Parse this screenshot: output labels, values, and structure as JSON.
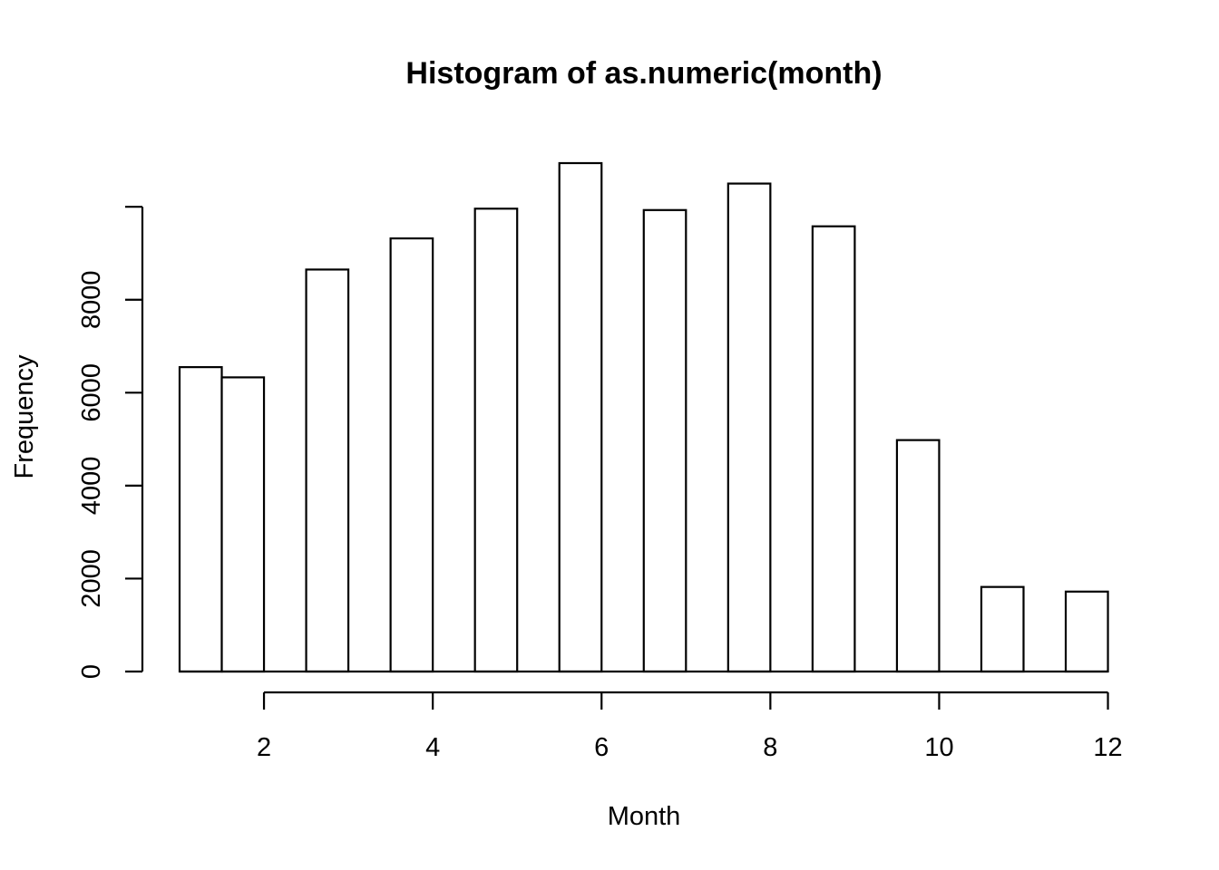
{
  "chart_data": {
    "type": "bar",
    "title": "Histogram of as.numeric(month)",
    "xlabel": "Month",
    "ylabel": "Frequency",
    "bins": [
      {
        "start": 1.0,
        "end": 1.5,
        "count": 6550
      },
      {
        "start": 1.5,
        "end": 2.0,
        "count": 6330
      },
      {
        "start": 2.0,
        "end": 2.5,
        "count": 0
      },
      {
        "start": 2.5,
        "end": 3.0,
        "count": 8650
      },
      {
        "start": 3.0,
        "end": 3.5,
        "count": 0
      },
      {
        "start": 3.5,
        "end": 4.0,
        "count": 9320
      },
      {
        "start": 4.0,
        "end": 4.5,
        "count": 0
      },
      {
        "start": 4.5,
        "end": 5.0,
        "count": 9960
      },
      {
        "start": 5.0,
        "end": 5.5,
        "count": 0
      },
      {
        "start": 5.5,
        "end": 6.0,
        "count": 10940
      },
      {
        "start": 6.0,
        "end": 6.5,
        "count": 0
      },
      {
        "start": 6.5,
        "end": 7.0,
        "count": 9930
      },
      {
        "start": 7.0,
        "end": 7.5,
        "count": 0
      },
      {
        "start": 7.5,
        "end": 8.0,
        "count": 10500
      },
      {
        "start": 8.0,
        "end": 8.5,
        "count": 0
      },
      {
        "start": 8.5,
        "end": 9.0,
        "count": 9580
      },
      {
        "start": 9.0,
        "end": 9.5,
        "count": 0
      },
      {
        "start": 9.5,
        "end": 10.0,
        "count": 4980
      },
      {
        "start": 10.0,
        "end": 10.5,
        "count": 0
      },
      {
        "start": 10.5,
        "end": 11.0,
        "count": 1820
      },
      {
        "start": 11.0,
        "end": 11.5,
        "count": 0
      },
      {
        "start": 11.5,
        "end": 12.0,
        "count": 1720
      }
    ],
    "xlim": [
      1,
      12
    ],
    "ylim": [
      0,
      10000
    ],
    "x_ticks": [
      2,
      4,
      6,
      8,
      10,
      12
    ],
    "x_tick_labels": [
      "2",
      "4",
      "6",
      "8",
      "10",
      "12"
    ],
    "y_ticks": [
      0,
      2000,
      4000,
      6000,
      8000,
      10000
    ],
    "y_tick_labels": [
      "0",
      "2000",
      "4000",
      "6000",
      "8000",
      ""
    ],
    "grid": false,
    "legend": "none",
    "bar_fill": "#ffffff",
    "bar_stroke": "#000000"
  }
}
